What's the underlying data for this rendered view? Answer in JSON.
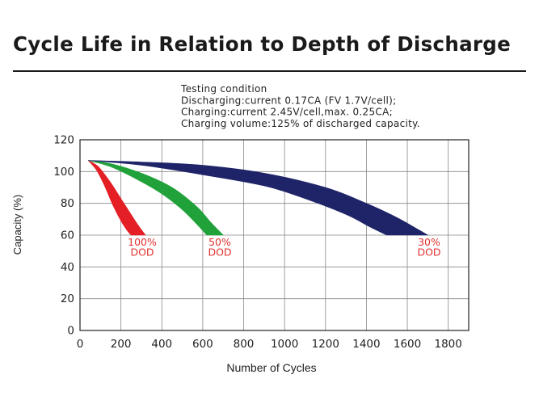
{
  "page": {
    "title": "Cycle Life in Relation to Depth of Discharge"
  },
  "chart_data": {
    "type": "area",
    "xlabel": "Number of Cycles",
    "ylabel": "Capacity (%)",
    "xlim": [
      0,
      1900
    ],
    "ylim": [
      0,
      120
    ],
    "xticks": [
      "0",
      "200",
      "400",
      "600",
      "800",
      "1000",
      "1200",
      "1400",
      "1600",
      "1800"
    ],
    "yticks": [
      "0",
      "20",
      "40",
      "60",
      "80",
      "100",
      "120"
    ],
    "grid": true,
    "annotation": [
      "Testing condition",
      "Discharging:current 0.17CA (FV 1.7V/cell);",
      "Charging:current 2.45V/cell,max. 0.25CA;",
      "Charging volume:125% of discharged capacity."
    ],
    "series": [
      {
        "name": "100% DOD",
        "label_lines": [
          "100%",
          "DOD"
        ],
        "color": "#e41f26",
        "upper": [
          [
            40,
            107
          ],
          [
            90,
            103
          ],
          [
            150,
            93
          ],
          [
            200,
            83
          ],
          [
            240,
            75
          ],
          [
            280,
            67
          ],
          [
            320,
            60
          ]
        ],
        "lower": [
          [
            40,
            107
          ],
          [
            80,
            101
          ],
          [
            120,
            91
          ],
          [
            160,
            79
          ],
          [
            200,
            69
          ],
          [
            230,
            63
          ],
          [
            250,
            60
          ]
        ]
      },
      {
        "name": "50% DOD",
        "label_lines": [
          "50%",
          "DOD"
        ],
        "color": "#20a13a",
        "upper": [
          [
            40,
            107
          ],
          [
            150,
            105
          ],
          [
            300,
            99
          ],
          [
            450,
            90
          ],
          [
            570,
            78
          ],
          [
            640,
            68
          ],
          [
            700,
            60
          ]
        ],
        "lower": [
          [
            40,
            107
          ],
          [
            150,
            103
          ],
          [
            280,
            95
          ],
          [
            400,
            86
          ],
          [
            500,
            76
          ],
          [
            570,
            67
          ],
          [
            620,
            60
          ]
        ]
      },
      {
        "name": "30% DOD",
        "label_lines": [
          "30%",
          "DOD"
        ],
        "color": "#1f2468",
        "upper": [
          [
            40,
            107
          ],
          [
            300,
            106
          ],
          [
            600,
            104
          ],
          [
            900,
            99
          ],
          [
            1200,
            90
          ],
          [
            1400,
            80
          ],
          [
            1550,
            71
          ],
          [
            1700,
            60
          ]
        ],
        "lower": [
          [
            40,
            107
          ],
          [
            300,
            104
          ],
          [
            600,
            98
          ],
          [
            900,
            91
          ],
          [
            1100,
            83
          ],
          [
            1300,
            73
          ],
          [
            1420,
            65
          ],
          [
            1500,
            60
          ]
        ]
      }
    ]
  }
}
